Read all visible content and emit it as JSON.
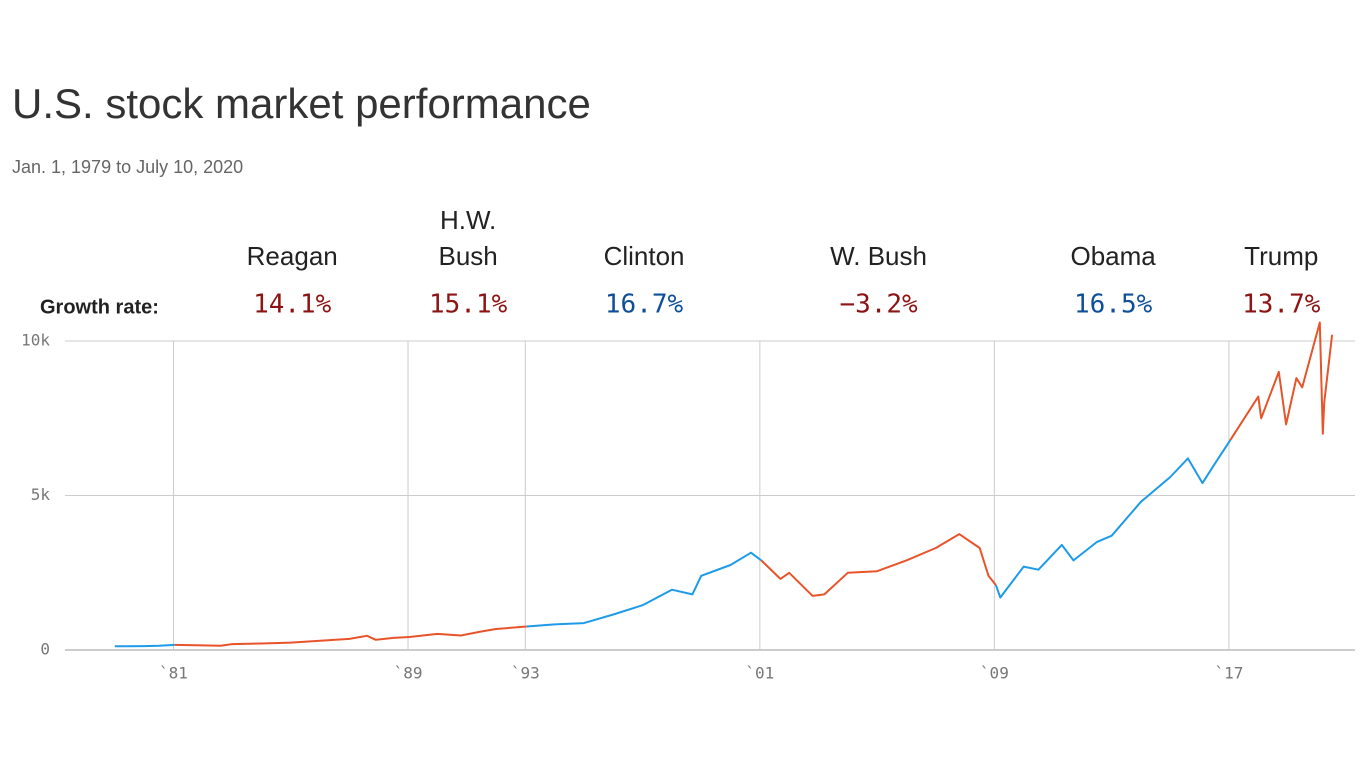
{
  "chart_data": {
    "type": "line",
    "title": "U.S. stock market performance",
    "subtitle": "Jan. 1, 1979 to July 10, 2020",
    "growth_rate_label": "Growth rate:",
    "xlim": [
      1977.3,
      2021.3
    ],
    "ylim": [
      0,
      10000
    ],
    "xticks": [
      {
        "value": 1981,
        "label": "`81"
      },
      {
        "value": 1989,
        "label": "`89"
      },
      {
        "value": 1993,
        "label": "`93"
      },
      {
        "value": 2001,
        "label": "`01"
      },
      {
        "value": 2009,
        "label": "`09"
      },
      {
        "value": 2017,
        "label": "`17"
      }
    ],
    "yticks": [
      0,
      {
        "value": 5000,
        "label": "5k"
      },
      {
        "value": 10000,
        "label": "10k"
      }
    ],
    "grid": true,
    "series": [
      {
        "color": "#1e9be8",
        "x": [
          1979.0,
          1980.0,
          1980.5,
          1981.05
        ],
        "values": [
          120,
          125,
          140,
          165
        ]
      },
      {
        "name": "Reagan",
        "color": "#e8542a",
        "growth": 14.1,
        "growth_label": "14.1%",
        "label_color": "#8b1414",
        "x": [
          1981.05,
          1982.0,
          1982.6,
          1983.0,
          1984.0,
          1985.0,
          1986.0,
          1987.0,
          1987.6,
          1987.9,
          1988.5,
          1989.05
        ],
        "values": [
          165,
          150,
          140,
          190,
          210,
          240,
          300,
          360,
          460,
          330,
          390,
          420
        ]
      },
      {
        "name": "H.W. Bush",
        "color": "#e8542a",
        "growth": 15.1,
        "growth_label": "15.1%",
        "label_color": "#8b1414",
        "x": [
          1989.05,
          1990.0,
          1990.8,
          1991.5,
          1992.0,
          1993.05
        ],
        "values": [
          420,
          520,
          470,
          600,
          680,
          760
        ]
      },
      {
        "name": "Clinton",
        "color": "#1e9be8",
        "growth": 16.7,
        "growth_label": "16.7%",
        "label_color": "#0f4f99",
        "x": [
          1993.05,
          1994.0,
          1995.0,
          1996.0,
          1997.0,
          1998.0,
          1998.7,
          1999.0,
          2000.0,
          2000.7,
          2001.05
        ],
        "values": [
          760,
          830,
          870,
          1150,
          1450,
          1950,
          1800,
          2400,
          2750,
          3150,
          2900
        ]
      },
      {
        "name": "W. Bush",
        "color": "#e8542a",
        "growth": -3.2,
        "growth_label": "−3.2%",
        "label_color": "#8b1414",
        "x": [
          2001.05,
          2001.7,
          2002.0,
          2002.8,
          2003.2,
          2004.0,
          2005.0,
          2006.0,
          2007.0,
          2007.8,
          2008.5,
          2008.8,
          2009.05
        ],
        "values": [
          2900,
          2300,
          2500,
          1750,
          1800,
          2500,
          2550,
          2900,
          3300,
          3750,
          3300,
          2400,
          2100
        ]
      },
      {
        "name": "Obama",
        "color": "#1e9be8",
        "growth": 16.5,
        "growth_label": "16.5%",
        "label_color": "#0f4f99",
        "x": [
          2009.05,
          2009.2,
          2010.0,
          2010.5,
          2011.3,
          2011.7,
          2012.5,
          2013.0,
          2014.0,
          2015.0,
          2015.6,
          2016.1,
          2016.5,
          2017.05
        ],
        "values": [
          2100,
          1700,
          2700,
          2600,
          3400,
          2900,
          3500,
          3700,
          4800,
          5600,
          6200,
          5400,
          6000,
          6800
        ]
      },
      {
        "name": "Trump",
        "color": "#e8542a",
        "growth": 13.7,
        "growth_label": "13.7%",
        "label_color": "#8b1414",
        "x": [
          2017.05,
          2018.0,
          2018.1,
          2018.7,
          2018.95,
          2019.3,
          2019.5,
          2020.1,
          2020.2,
          2020.25,
          2020.52
        ],
        "values": [
          6800,
          8200,
          7500,
          9000,
          7300,
          8800,
          8500,
          10600,
          7000,
          8000,
          10200
        ]
      }
    ]
  }
}
